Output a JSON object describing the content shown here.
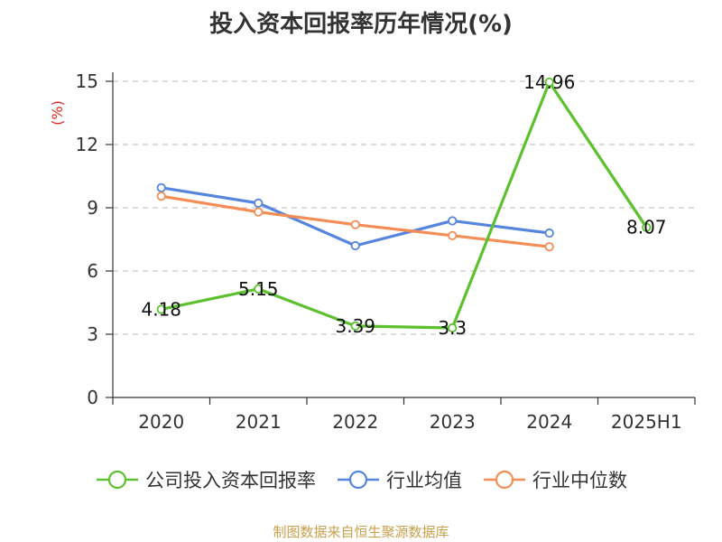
{
  "chart_data": {
    "type": "line",
    "title": "投入资本回报率历年情况(%)",
    "ylabel": "(%)",
    "xlabel": "",
    "categories": [
      "2020",
      "2021",
      "2022",
      "2023",
      "2024",
      "2025H1"
    ],
    "yticks": [
      "0",
      "3",
      "6",
      "9",
      "12",
      "15"
    ],
    "ylim": [
      0,
      15
    ],
    "grid": "horizontal-dashed",
    "legend_position": "bottom",
    "series": [
      {
        "name": "公司投入资本回报率",
        "color": "#5dc12f",
        "values": [
          4.18,
          5.15,
          3.39,
          3.3,
          14.96,
          8.07
        ],
        "labels": [
          "4.18",
          "5.15",
          "3.39",
          "3.3",
          "14.96",
          "8.07"
        ]
      },
      {
        "name": "行业均值",
        "color": "#5585de",
        "values": [
          9.95,
          9.22,
          7.2,
          8.38,
          7.8,
          null
        ]
      },
      {
        "name": "行业中位数",
        "color": "#f58d57",
        "values": [
          9.55,
          8.8,
          8.2,
          7.68,
          7.15,
          null
        ]
      }
    ]
  },
  "footer": {
    "source": "制图数据来自恒生聚源数据库"
  }
}
